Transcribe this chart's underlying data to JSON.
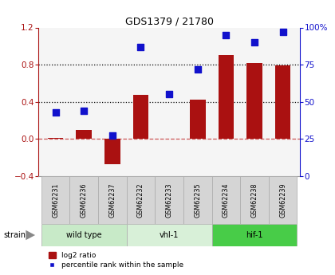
{
  "title": "GDS1379 / 21780",
  "samples": [
    "GSM62231",
    "GSM62236",
    "GSM62237",
    "GSM62232",
    "GSM62233",
    "GSM62235",
    "GSM62234",
    "GSM62238",
    "GSM62239"
  ],
  "log2_ratio": [
    0.01,
    0.1,
    -0.27,
    0.47,
    0.0,
    0.42,
    0.9,
    0.82,
    0.79
  ],
  "percentile_rank": [
    43,
    44,
    27,
    87,
    55,
    72,
    95,
    90,
    97
  ],
  "groups": [
    {
      "label": "wild type",
      "start": 0,
      "end": 3,
      "color": "#c8eac8"
    },
    {
      "label": "vhl-1",
      "start": 3,
      "end": 6,
      "color": "#d8f0d8"
    },
    {
      "label": "hif-1",
      "start": 6,
      "end": 9,
      "color": "#48cc48"
    }
  ],
  "ylim_left": [
    -0.4,
    1.2
  ],
  "ylim_right": [
    0,
    100
  ],
  "yticks_left": [
    -0.4,
    0.0,
    0.4,
    0.8,
    1.2
  ],
  "yticks_right": [
    0,
    25,
    50,
    75,
    100
  ],
  "bar_color": "#aa1111",
  "dot_color": "#1111cc",
  "hline_zero_color": "#cc5555",
  "bg_color": "#ffffff",
  "plot_bg_color": "#f5f5f5",
  "legend_bar_label": "log2 ratio",
  "legend_dot_label": "percentile rank within the sample",
  "bar_width": 0.55,
  "dot_size": 40,
  "sample_box_color": "#d5d5d5",
  "sample_box_edge_color": "#aaaaaa"
}
